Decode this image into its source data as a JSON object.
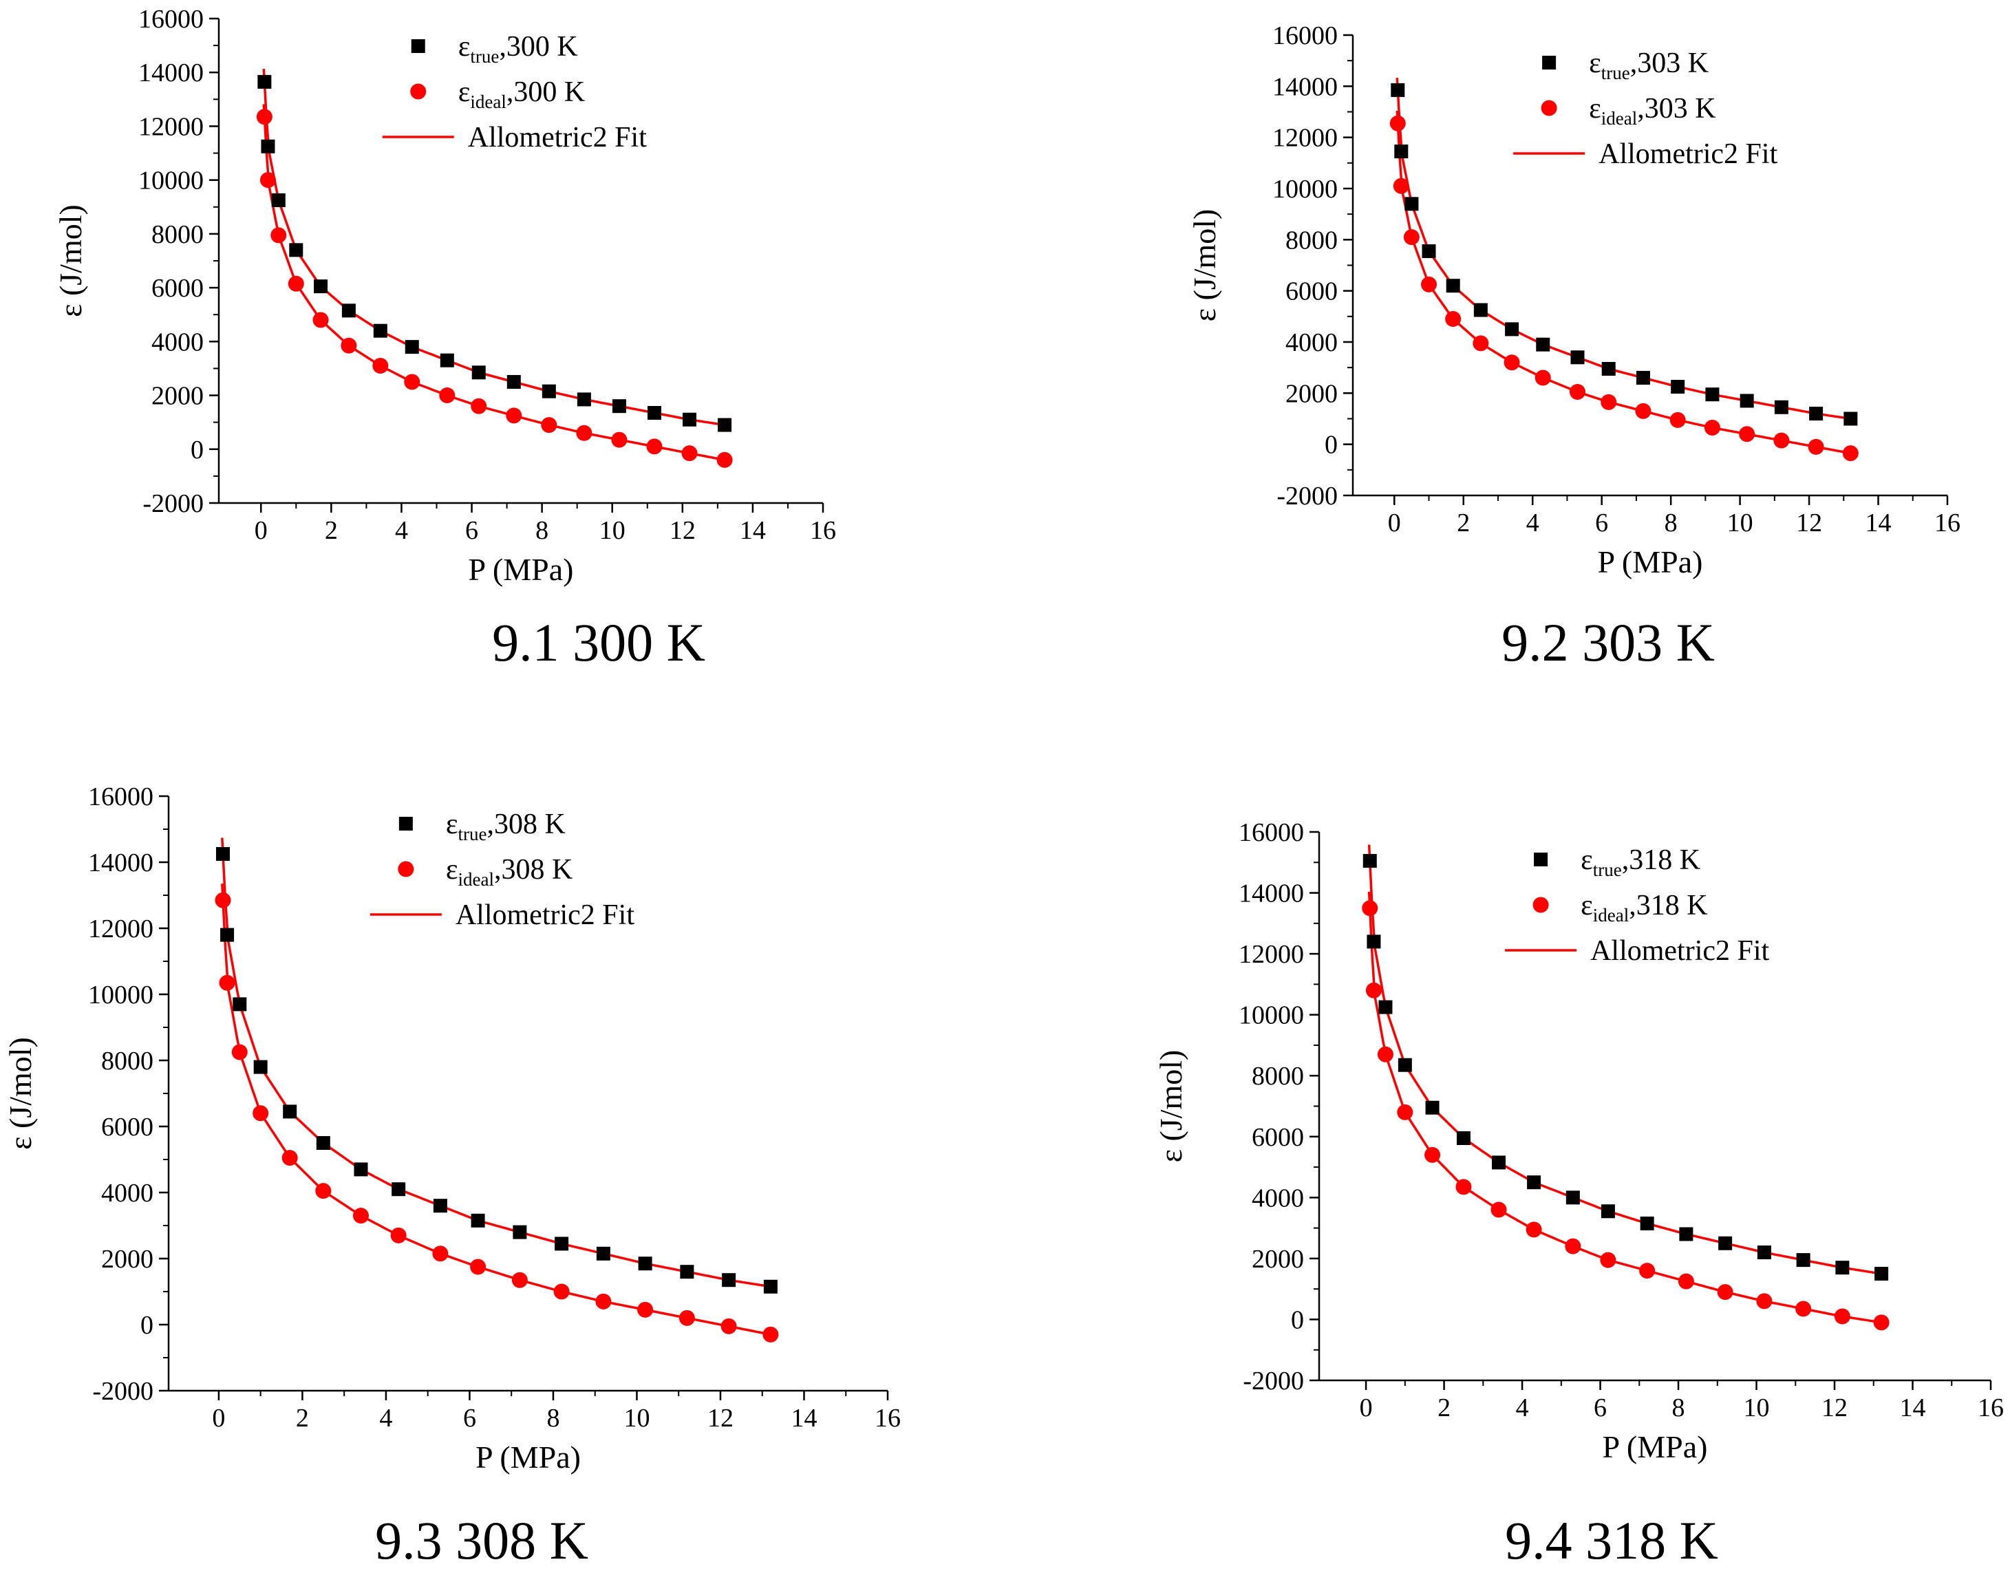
{
  "chart_data": [
    {
      "type": "scatter",
      "caption": "9.1 300 K",
      "xlabel": "P (MPa)",
      "ylabel": "ε (J/mol)",
      "xlim": [
        -1.2,
        16
      ],
      "ylim": [
        -2000,
        16000
      ],
      "xticks": [
        0,
        2,
        4,
        6,
        8,
        10,
        12,
        14,
        16
      ],
      "yticks": [
        -2000,
        0,
        2000,
        4000,
        6000,
        8000,
        10000,
        12000,
        14000,
        16000
      ],
      "grid": false,
      "legend_position": "top-right",
      "legend": {
        "true_base": "ε",
        "true_sub": "true",
        "true_tail": ",300 K",
        "ideal_base": "ε",
        "ideal_sub": "ideal",
        "ideal_tail": ",300 K",
        "fit": "Allometric2 Fit"
      },
      "x": [
        0.1,
        0.2,
        0.5,
        1.0,
        1.7,
        2.5,
        3.4,
        4.3,
        5.3,
        6.2,
        7.2,
        8.2,
        9.2,
        10.2,
        11.2,
        12.2,
        13.2
      ],
      "series": [
        {
          "marker": "square",
          "color": "#000000",
          "values": [
            13650,
            11250,
            9250,
            7400,
            6050,
            5150,
            4400,
            3800,
            3300,
            2850,
            2500,
            2150,
            1850,
            1600,
            1350,
            1100,
            900
          ]
        },
        {
          "marker": "circle",
          "color": "#ff0000",
          "values": [
            12350,
            10000,
            7950,
            6150,
            4800,
            3850,
            3100,
            2500,
            2000,
            1600,
            1250,
            900,
            600,
            350,
            100,
            -150,
            -400
          ]
        }
      ],
      "fit_color": "#ff0000"
    },
    {
      "type": "scatter",
      "caption": "9.2 303 K",
      "xlabel": "P (MPa)",
      "ylabel": "ε (J/mol)",
      "xlim": [
        -1.2,
        16
      ],
      "ylim": [
        -2000,
        16000
      ],
      "xticks": [
        0,
        2,
        4,
        6,
        8,
        10,
        12,
        14,
        16
      ],
      "yticks": [
        -2000,
        0,
        2000,
        4000,
        6000,
        8000,
        10000,
        12000,
        14000,
        16000
      ],
      "grid": false,
      "legend_position": "top-right",
      "legend": {
        "true_base": "ε",
        "true_sub": "true",
        "true_tail": ",303 K",
        "ideal_base": "ε",
        "ideal_sub": "ideal",
        "ideal_tail": ",303 K",
        "fit": "Allometric2 Fit"
      },
      "x": [
        0.1,
        0.2,
        0.5,
        1.0,
        1.7,
        2.5,
        3.4,
        4.3,
        5.3,
        6.2,
        7.2,
        8.2,
        9.2,
        10.2,
        11.2,
        12.2,
        13.2
      ],
      "series": [
        {
          "marker": "square",
          "color": "#000000",
          "values": [
            13850,
            11450,
            9400,
            7550,
            6200,
            5250,
            4500,
            3900,
            3400,
            2950,
            2600,
            2250,
            1950,
            1700,
            1450,
            1200,
            1000
          ]
        },
        {
          "marker": "circle",
          "color": "#ff0000",
          "values": [
            12550,
            10100,
            8100,
            6250,
            4900,
            3950,
            3200,
            2600,
            2050,
            1650,
            1300,
            950,
            650,
            400,
            150,
            -100,
            -350
          ]
        }
      ],
      "fit_color": "#ff0000"
    },
    {
      "type": "scatter",
      "caption": "9.3 308 K",
      "xlabel": "P (MPa)",
      "ylabel": "ε (J/mol)",
      "xlim": [
        -1.2,
        16
      ],
      "ylim": [
        -2000,
        16000
      ],
      "xticks": [
        0,
        2,
        4,
        6,
        8,
        10,
        12,
        14,
        16
      ],
      "yticks": [
        -2000,
        0,
        2000,
        4000,
        6000,
        8000,
        10000,
        12000,
        14000,
        16000
      ],
      "grid": false,
      "legend_position": "top-right",
      "legend": {
        "true_base": "ε",
        "true_sub": "true",
        "true_tail": ",308 K",
        "ideal_base": "ε",
        "ideal_sub": "ideal",
        "ideal_tail": ",308 K",
        "fit": "Allometric2 Fit"
      },
      "x": [
        0.1,
        0.2,
        0.5,
        1.0,
        1.7,
        2.5,
        3.4,
        4.3,
        5.3,
        6.2,
        7.2,
        8.2,
        9.2,
        10.2,
        11.2,
        12.2,
        13.2
      ],
      "series": [
        {
          "marker": "square",
          "color": "#000000",
          "values": [
            14250,
            11800,
            9700,
            7800,
            6450,
            5500,
            4700,
            4100,
            3600,
            3150,
            2800,
            2450,
            2150,
            1850,
            1600,
            1350,
            1150
          ]
        },
        {
          "marker": "circle",
          "color": "#ff0000",
          "values": [
            12850,
            10350,
            8250,
            6400,
            5050,
            4050,
            3300,
            2700,
            2150,
            1750,
            1350,
            1000,
            700,
            450,
            200,
            -50,
            -300
          ]
        }
      ],
      "fit_color": "#ff0000"
    },
    {
      "type": "scatter",
      "caption": "9.4 318 K",
      "xlabel": "P (MPa)",
      "ylabel": "ε (J/mol)",
      "xlim": [
        -1.2,
        16
      ],
      "ylim": [
        -2000,
        16000
      ],
      "xticks": [
        0,
        2,
        4,
        6,
        8,
        10,
        12,
        14,
        16
      ],
      "yticks": [
        -2000,
        0,
        2000,
        4000,
        6000,
        8000,
        10000,
        12000,
        14000,
        16000
      ],
      "grid": false,
      "legend_position": "top-right",
      "legend": {
        "true_base": "ε",
        "true_sub": "true",
        "true_tail": ",318 K",
        "ideal_base": "ε",
        "ideal_sub": "ideal",
        "ideal_tail": ",318 K",
        "fit": "Allometric2 Fit"
      },
      "x": [
        0.1,
        0.2,
        0.5,
        1.0,
        1.7,
        2.5,
        3.4,
        4.3,
        5.3,
        6.2,
        7.2,
        8.2,
        9.2,
        10.2,
        11.2,
        12.2,
        13.2
      ],
      "series": [
        {
          "marker": "square",
          "color": "#000000",
          "values": [
            15050,
            12400,
            10250,
            8350,
            6950,
            5950,
            5150,
            4500,
            4000,
            3550,
            3150,
            2800,
            2500,
            2200,
            1950,
            1700,
            1500
          ]
        },
        {
          "marker": "circle",
          "color": "#ff0000",
          "values": [
            13500,
            10800,
            8700,
            6800,
            5400,
            4350,
            3600,
            2950,
            2400,
            1950,
            1600,
            1250,
            900,
            600,
            350,
            100,
            -100
          ]
        }
      ],
      "fit_color": "#ff0000"
    }
  ]
}
